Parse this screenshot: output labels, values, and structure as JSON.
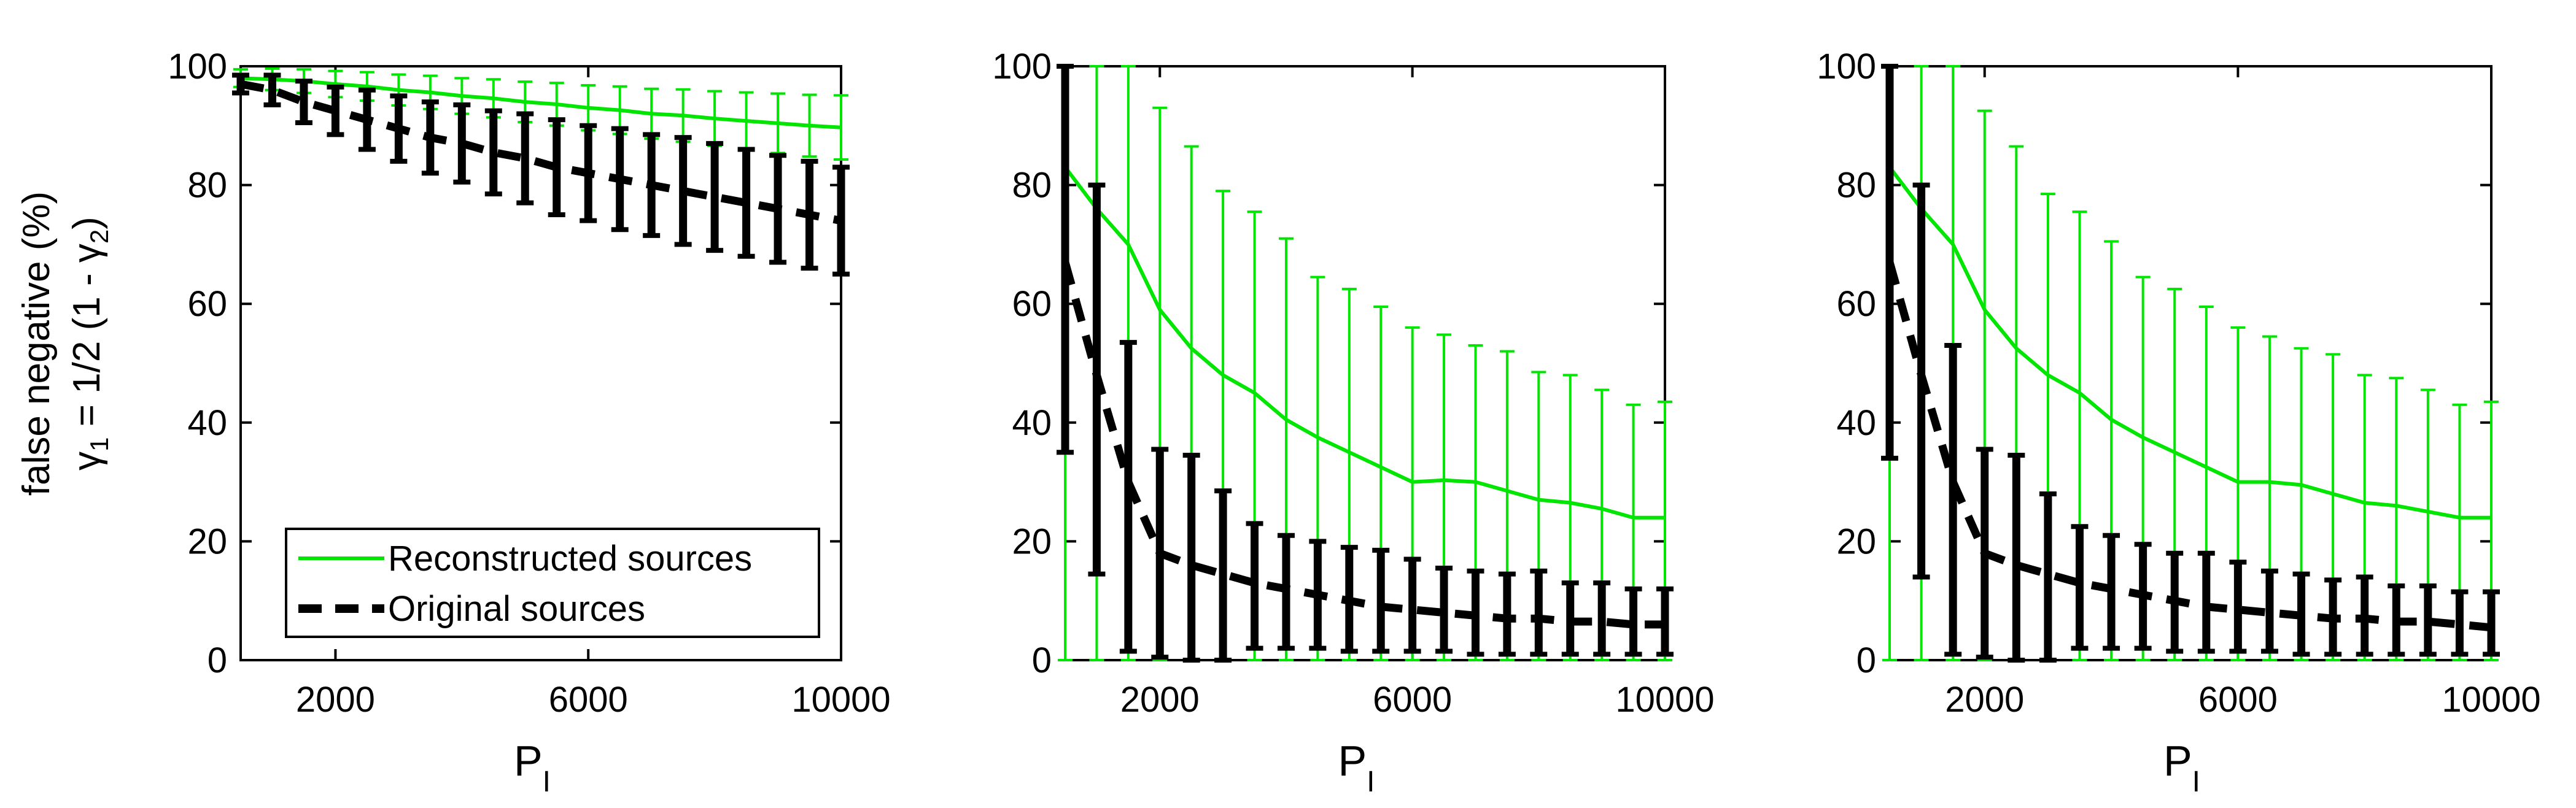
{
  "ylabel": {
    "line1": "false negative (%)",
    "gamma1_sym": "γ",
    "gamma1_sub": "1",
    "eq": " = 1/2 (1 - ",
    "gamma2_sym": "γ",
    "gamma2_sub": "2",
    "close": ")"
  },
  "xlabel": {
    "main": "P",
    "sub": "I"
  },
  "legend": {
    "reconstructed": "Reconstructed sources",
    "original": "Original sources"
  },
  "colors": {
    "reconstructed": "#00e600",
    "original": "#000000",
    "axis": "#000000"
  },
  "chart_data": [
    {
      "type": "line",
      "title": "",
      "xlabel": "P_I",
      "ylabel": "false negative (%) γ1 = 1/2 (1 - γ2)",
      "xlim": [
        500,
        10000
      ],
      "ylim": [
        0,
        100
      ],
      "x_ticks": [
        2000,
        6000,
        10000
      ],
      "y_ticks": [
        0,
        20,
        40,
        60,
        80,
        100
      ],
      "legend": "bottom-left",
      "x": [
        500,
        1000,
        1500,
        2000,
        2500,
        3000,
        3500,
        4000,
        4500,
        5000,
        5500,
        6000,
        6500,
        7000,
        7500,
        8000,
        8500,
        9000,
        9500,
        10000
      ],
      "series": [
        {
          "name": "Reconstructed sources",
          "style": "solid",
          "values": [
            98,
            97.8,
            97.5,
            97,
            96.6,
            96,
            95.6,
            95,
            94.6,
            94,
            93.6,
            93,
            92.6,
            92,
            91.7,
            91.2,
            90.8,
            90.4,
            90,
            89.7
          ],
          "err_low": [
            1.5,
            1.8,
            2,
            2.2,
            2.4,
            2.6,
            2.8,
            3,
            3.2,
            3.4,
            3.6,
            3.8,
            4,
            4.2,
            4.4,
            4.6,
            4.8,
            5,
            5.2,
            5.4
          ],
          "err_high": [
            1.5,
            1.8,
            2,
            2.2,
            2.4,
            2.6,
            2.8,
            3,
            3.2,
            3.4,
            3.6,
            3.8,
            4,
            4.2,
            4.4,
            4.6,
            4.8,
            5,
            5.2,
            5.4
          ]
        },
        {
          "name": "Original sources",
          "style": "dashed",
          "values": [
            97,
            96,
            94,
            92.5,
            91,
            89.5,
            88,
            87,
            85.5,
            84.5,
            83,
            82,
            81,
            80,
            79,
            78,
            77,
            76,
            75,
            74
          ],
          "err_low": [
            1.5,
            2.5,
            3.5,
            4,
            5,
            5.5,
            6,
            6.5,
            7,
            7.5,
            8,
            8,
            8.5,
            8.5,
            9,
            9,
            9,
            9,
            9,
            9
          ],
          "err_high": [
            1.5,
            2.5,
            3.5,
            4,
            5,
            5.5,
            6,
            6.5,
            7,
            7.5,
            8,
            8,
            8.5,
            8.5,
            9,
            9,
            9,
            9,
            9,
            9
          ]
        }
      ]
    },
    {
      "type": "line",
      "title": "",
      "xlabel": "P_I",
      "ylabel": "",
      "xlim": [
        500,
        10000
      ],
      "ylim": [
        0,
        100
      ],
      "x_ticks": [
        2000,
        6000,
        10000
      ],
      "y_ticks": [
        0,
        20,
        40,
        60,
        80,
        100
      ],
      "x": [
        500,
        1000,
        1500,
        2000,
        2500,
        3000,
        3500,
        4000,
        4500,
        5000,
        5500,
        6000,
        6500,
        7000,
        7500,
        8000,
        8500,
        9000,
        9500,
        10000
      ],
      "series": [
        {
          "name": "Reconstructed sources",
          "style": "solid",
          "values": [
            83,
            76,
            70,
            59,
            52.5,
            48,
            45,
            40.5,
            37.5,
            35,
            32.5,
            30,
            30.3,
            30,
            28.5,
            27,
            26.5,
            25.5,
            24,
            24
          ],
          "err_low": [
            83,
            76,
            70,
            59,
            52.5,
            48,
            45,
            40.5,
            37.5,
            35,
            32.5,
            30,
            30.3,
            30,
            28.5,
            27,
            26.5,
            25.5,
            24,
            24
          ],
          "err_high": [
            35,
            30,
            30,
            34,
            34,
            31,
            30.5,
            30.5,
            27,
            27.5,
            27,
            26,
            24.5,
            23,
            23.5,
            21.5,
            21.5,
            20,
            19,
            19.5
          ]
        },
        {
          "name": "Original sources",
          "style": "dashed",
          "values": [
            67,
            48,
            30,
            18,
            16,
            14.5,
            13,
            12,
            11,
            10,
            9,
            8.5,
            8,
            7.5,
            7,
            7,
            6.5,
            6.5,
            6,
            6
          ],
          "err_low": [
            32,
            33.5,
            28.5,
            17.5,
            16,
            14.5,
            11,
            10,
            9,
            8.5,
            7.5,
            7,
            6.5,
            6.5,
            6,
            6,
            5.5,
            5.5,
            5,
            5
          ],
          "err_high": [
            33,
            32,
            23.5,
            17.5,
            18.5,
            14,
            10,
            9,
            9,
            9,
            9.5,
            8.5,
            7.5,
            7.5,
            7.5,
            8,
            6.5,
            6.5,
            6,
            6
          ]
        }
      ]
    },
    {
      "type": "line",
      "title": "",
      "xlabel": "P_I",
      "ylabel": "",
      "xlim": [
        500,
        10000
      ],
      "ylim": [
        0,
        100
      ],
      "x_ticks": [
        2000,
        6000,
        10000
      ],
      "y_ticks": [
        0,
        20,
        40,
        60,
        80,
        100
      ],
      "x": [
        500,
        1000,
        1500,
        2000,
        2500,
        3000,
        3500,
        4000,
        4500,
        5000,
        5500,
        6000,
        6500,
        7000,
        7500,
        8000,
        8500,
        9000,
        9500,
        10000
      ],
      "series": [
        {
          "name": "Reconstructed sources",
          "style": "solid",
          "values": [
            83,
            76,
            70,
            59,
            52.5,
            48,
            45,
            40.5,
            37.5,
            35,
            32.5,
            30,
            30,
            29.5,
            28,
            26.5,
            26,
            25,
            24,
            24
          ],
          "err_low": [
            83,
            76,
            70,
            59,
            52.5,
            48,
            45,
            40.5,
            37.5,
            35,
            32.5,
            30,
            30,
            29.5,
            28,
            26.5,
            26,
            25,
            24,
            24
          ],
          "err_high": [
            35,
            30,
            30,
            33.5,
            34,
            30.5,
            30.5,
            30,
            27,
            27.5,
            27,
            26,
            24.5,
            23,
            23.5,
            21.5,
            21.5,
            20.5,
            19,
            19.5
          ]
        },
        {
          "name": "Original sources",
          "style": "dashed",
          "values": [
            67,
            48,
            30,
            18,
            16,
            14.5,
            13,
            12,
            11,
            10,
            9,
            8.5,
            8,
            7.5,
            7,
            7,
            6.5,
            6.5,
            6,
            5.5
          ],
          "err_low": [
            33,
            34,
            29,
            17.5,
            16,
            14.5,
            11,
            10,
            9,
            8.5,
            7.5,
            7,
            6.5,
            6.5,
            6,
            6,
            5.5,
            5.5,
            5,
            4.5
          ],
          "err_high": [
            33,
            32,
            23,
            17.5,
            18.5,
            13.5,
            9.5,
            9,
            8.5,
            8,
            9,
            8,
            7,
            7,
            6.5,
            7,
            6,
            6,
            5.5,
            6
          ]
        }
      ]
    }
  ]
}
